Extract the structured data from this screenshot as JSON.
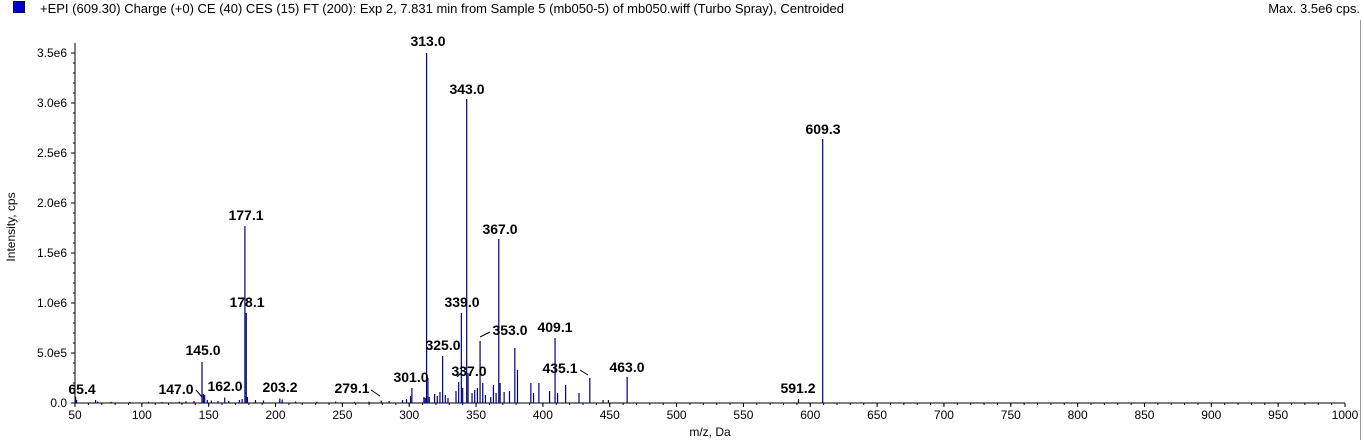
{
  "header": {
    "icon": "blue-square-icon",
    "title": "+EPI (609.30) Charge (+0) CE (40) CES (15) FT (200): Exp 2, 7.831 min from Sample 5 (mb050-5) of mb050.wiff (Turbo Spray), Centroided",
    "max_label": "Max. 3.5e6 cps."
  },
  "chart_data": {
    "type": "bar",
    "xlabel": "m/z, Da",
    "ylabel": "Intensity, cps",
    "xlim": [
      50,
      1000
    ],
    "ylim": [
      0,
      3500000
    ],
    "x_ticks": [
      50,
      100,
      150,
      200,
      250,
      300,
      350,
      400,
      450,
      500,
      550,
      600,
      650,
      700,
      750,
      800,
      850,
      900,
      950,
      1000
    ],
    "x_tick_labels": [
      "50",
      "100",
      "150",
      "200",
      "250",
      "300",
      "350",
      "400",
      "450",
      "500",
      "550",
      "600",
      "650",
      "700",
      "750",
      "800",
      "850",
      "900",
      "950",
      "1000"
    ],
    "y_ticks": [
      0,
      500000,
      1000000,
      1500000,
      2000000,
      2500000,
      3000000,
      3500000
    ],
    "y_tick_labels": [
      "0.0",
      "5.0e5",
      "1.0e6",
      "1.5e6",
      "2.0e6",
      "2.5e6",
      "3.0e6",
      "3.5e6"
    ],
    "color": "#000080",
    "peaks": [
      {
        "mz": 50.5,
        "intensity": 60000
      },
      {
        "mz": 51.2,
        "intensity": 30000
      },
      {
        "mz": 65.4,
        "intensity": 30000
      },
      {
        "mz": 67.0,
        "intensity": 15000
      },
      {
        "mz": 77.0,
        "intensity": 12000
      },
      {
        "mz": 91.0,
        "intensity": 10000
      },
      {
        "mz": 105.0,
        "intensity": 12000
      },
      {
        "mz": 115.0,
        "intensity": 10000
      },
      {
        "mz": 128.0,
        "intensity": 14000
      },
      {
        "mz": 133.0,
        "intensity": 18000
      },
      {
        "mz": 139.0,
        "intensity": 20000
      },
      {
        "mz": 145.0,
        "intensity": 410000
      },
      {
        "mz": 146.0,
        "intensity": 90000
      },
      {
        "mz": 147.0,
        "intensity": 80000
      },
      {
        "mz": 149.0,
        "intensity": 30000
      },
      {
        "mz": 152.0,
        "intensity": 25000
      },
      {
        "mz": 157.0,
        "intensity": 20000
      },
      {
        "mz": 162.0,
        "intensity": 55000
      },
      {
        "mz": 165.0,
        "intensity": 22000
      },
      {
        "mz": 173.0,
        "intensity": 30000
      },
      {
        "mz": 175.0,
        "intensity": 40000
      },
      {
        "mz": 177.1,
        "intensity": 1770000
      },
      {
        "mz": 178.1,
        "intensity": 900000
      },
      {
        "mz": 179.0,
        "intensity": 60000
      },
      {
        "mz": 185.0,
        "intensity": 30000
      },
      {
        "mz": 191.0,
        "intensity": 25000
      },
      {
        "mz": 203.2,
        "intensity": 45000
      },
      {
        "mz": 205.0,
        "intensity": 35000
      },
      {
        "mz": 215.0,
        "intensity": 15000
      },
      {
        "mz": 231.0,
        "intensity": 12000
      },
      {
        "mz": 245.0,
        "intensity": 15000
      },
      {
        "mz": 259.0,
        "intensity": 12000
      },
      {
        "mz": 270.0,
        "intensity": 14000
      },
      {
        "mz": 279.1,
        "intensity": 25000
      },
      {
        "mz": 285.0,
        "intensity": 20000
      },
      {
        "mz": 295.0,
        "intensity": 30000
      },
      {
        "mz": 298.0,
        "intensity": 40000
      },
      {
        "mz": 301.0,
        "intensity": 70000
      },
      {
        "mz": 302.0,
        "intensity": 150000
      },
      {
        "mz": 311.0,
        "intensity": 60000
      },
      {
        "mz": 312.0,
        "intensity": 50000
      },
      {
        "mz": 313.0,
        "intensity": 3500000
      },
      {
        "mz": 314.0,
        "intensity": 250000
      },
      {
        "mz": 315.0,
        "intensity": 60000
      },
      {
        "mz": 319.0,
        "intensity": 90000
      },
      {
        "mz": 321.0,
        "intensity": 70000
      },
      {
        "mz": 323.0,
        "intensity": 110000
      },
      {
        "mz": 325.0,
        "intensity": 470000
      },
      {
        "mz": 327.0,
        "intensity": 80000
      },
      {
        "mz": 329.0,
        "intensity": 50000
      },
      {
        "mz": 335.0,
        "intensity": 120000
      },
      {
        "mz": 337.0,
        "intensity": 210000
      },
      {
        "mz": 339.0,
        "intensity": 900000
      },
      {
        "mz": 340.0,
        "intensity": 150000
      },
      {
        "mz": 343.0,
        "intensity": 3040000
      },
      {
        "mz": 344.0,
        "intensity": 300000
      },
      {
        "mz": 347.0,
        "intensity": 100000
      },
      {
        "mz": 349.0,
        "intensity": 130000
      },
      {
        "mz": 351.0,
        "intensity": 150000
      },
      {
        "mz": 353.0,
        "intensity": 620000
      },
      {
        "mz": 355.0,
        "intensity": 200000
      },
      {
        "mz": 357.0,
        "intensity": 80000
      },
      {
        "mz": 361.0,
        "intensity": 60000
      },
      {
        "mz": 363.0,
        "intensity": 180000
      },
      {
        "mz": 365.0,
        "intensity": 100000
      },
      {
        "mz": 367.0,
        "intensity": 1640000
      },
      {
        "mz": 368.0,
        "intensity": 200000
      },
      {
        "mz": 371.0,
        "intensity": 110000
      },
      {
        "mz": 375.0,
        "intensity": 120000
      },
      {
        "mz": 379.0,
        "intensity": 550000
      },
      {
        "mz": 381.0,
        "intensity": 330000
      },
      {
        "mz": 391.0,
        "intensity": 200000
      },
      {
        "mz": 393.0,
        "intensity": 100000
      },
      {
        "mz": 397.0,
        "intensity": 200000
      },
      {
        "mz": 405.0,
        "intensity": 120000
      },
      {
        "mz": 409.1,
        "intensity": 650000
      },
      {
        "mz": 411.0,
        "intensity": 100000
      },
      {
        "mz": 417.0,
        "intensity": 180000
      },
      {
        "mz": 427.0,
        "intensity": 100000
      },
      {
        "mz": 435.1,
        "intensity": 250000
      },
      {
        "mz": 445.0,
        "intensity": 30000
      },
      {
        "mz": 449.0,
        "intensity": 30000
      },
      {
        "mz": 463.0,
        "intensity": 260000
      },
      {
        "mz": 591.2,
        "intensity": 40000
      },
      {
        "mz": 609.3,
        "intensity": 2640000
      }
    ],
    "annotations": [
      {
        "label": "65.4",
        "mz": 65.4
      },
      {
        "label": "145.0",
        "mz": 145.0
      },
      {
        "label": "147.0",
        "mz": 147.0
      },
      {
        "label": "162.0",
        "mz": 162.0
      },
      {
        "label": "177.1",
        "mz": 177.1
      },
      {
        "label": "178.1",
        "mz": 178.1
      },
      {
        "label": "203.2",
        "mz": 203.2
      },
      {
        "label": "279.1",
        "mz": 279.1
      },
      {
        "label": "301.0",
        "mz": 301.0
      },
      {
        "label": "313.0",
        "mz": 313.0
      },
      {
        "label": "325.0",
        "mz": 325.0
      },
      {
        "label": "337.0",
        "mz": 337.0
      },
      {
        "label": "339.0",
        "mz": 339.0
      },
      {
        "label": "343.0",
        "mz": 343.0
      },
      {
        "label": "353.0",
        "mz": 353.0
      },
      {
        "label": "367.0",
        "mz": 367.0
      },
      {
        "label": "409.1",
        "mz": 409.1
      },
      {
        "label": "435.1",
        "mz": 435.1
      },
      {
        "label": "463.0",
        "mz": 463.0
      },
      {
        "label": "591.2",
        "mz": 591.2
      },
      {
        "label": "609.3",
        "mz": 609.3
      }
    ]
  }
}
